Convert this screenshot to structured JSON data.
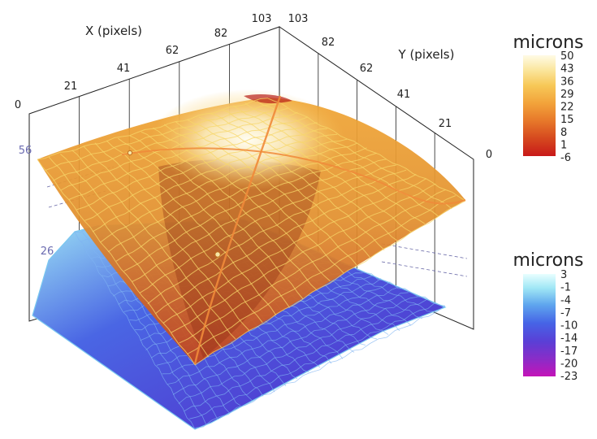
{
  "chart_data": {
    "type": "surface3d",
    "axes": {
      "x": {
        "label": "X (pixels)",
        "ticks": [
          "0",
          "21",
          "41",
          "62",
          "82",
          "103"
        ]
      },
      "y": {
        "label": "Y (pixels)",
        "ticks": [
          "0",
          "21",
          "41",
          "62",
          "82",
          "103"
        ]
      },
      "z": {
        "ticks": [
          "26",
          "56"
        ]
      }
    },
    "colorbars": [
      {
        "title": "microns",
        "ticks": [
          "50",
          "43",
          "36",
          "29",
          "22",
          "15",
          "8",
          "1",
          "-6"
        ],
        "colors": [
          "#fffbe6",
          "#fbe7a0",
          "#f7c857",
          "#f2a23a",
          "#e7782a",
          "#d64a1f",
          "#c81919"
        ]
      },
      {
        "title": "microns",
        "ticks": [
          "3",
          "-1",
          "-4",
          "-7",
          "-10",
          "-14",
          "-17",
          "-20",
          "-23"
        ],
        "colors": [
          "#e8ffff",
          "#9fe6f5",
          "#5fa6ee",
          "#4664e6",
          "#5a3fd6",
          "#8a2cc8",
          "#c414b8"
        ]
      }
    ],
    "surfaces": [
      {
        "colorbar": 0,
        "z_range": [
          -6,
          50
        ],
        "shape": "dome"
      },
      {
        "colorbar": 1,
        "z_range": [
          -23,
          3
        ],
        "shape": "rough-plane"
      }
    ],
    "legend": "right"
  }
}
